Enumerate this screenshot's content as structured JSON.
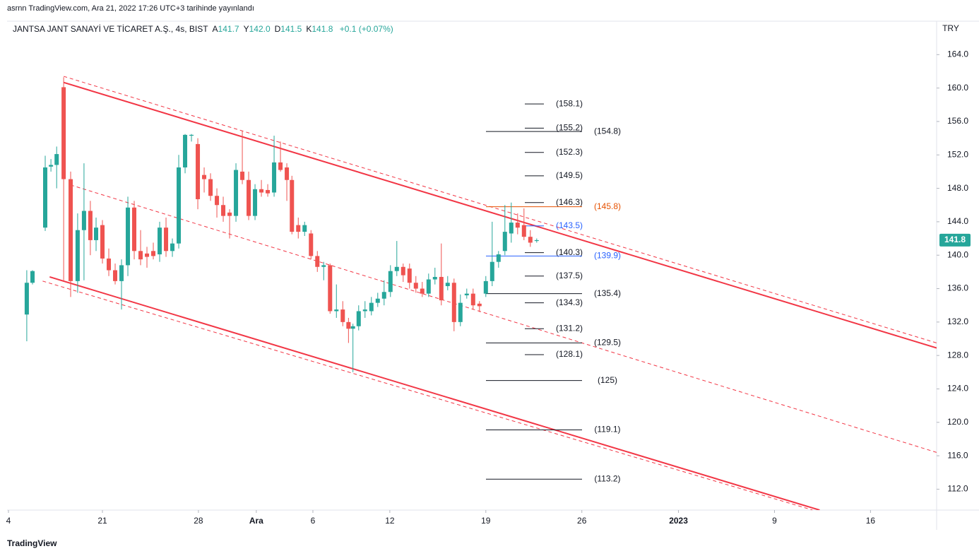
{
  "header": {
    "published": "asrnn TradingView.com, Ara 21, 2022 17:26 UTC+3 tarihinde yayınlandı",
    "symbol": "JANTSA JANT SANAYİ VE TİCARET A.Ş., 4s, BIST",
    "ohlc": [
      {
        "key": "A",
        "value": "141.7"
      },
      {
        "key": "Y",
        "value": "142.0"
      },
      {
        "key": "D",
        "value": "141.5"
      },
      {
        "key": "K",
        "value": "141.8"
      }
    ],
    "change": "+0.1 (+0.07%)"
  },
  "footer": {
    "brand": "TradingView"
  },
  "chart_data": {
    "type": "candlestick",
    "currency": "TRY",
    "up_color": "#26a69a",
    "down_color": "#ef5350",
    "grid": false,
    "ylim": [
      109.5,
      168.0
    ],
    "yticks": [
      {
        "value": 112,
        "label": "112.0"
      },
      {
        "value": 116,
        "label": "116.0"
      },
      {
        "value": 120,
        "label": "120.0"
      },
      {
        "value": 124,
        "label": "124.0"
      },
      {
        "value": 128,
        "label": "128.0"
      },
      {
        "value": 132,
        "label": "132.0"
      },
      {
        "value": 136,
        "label": "136.0"
      },
      {
        "value": 140,
        "label": "140.0"
      },
      {
        "value": 144,
        "label": "144.0"
      },
      {
        "value": 148,
        "label": "148.0"
      },
      {
        "value": 152,
        "label": "152.0"
      },
      {
        "value": 156,
        "label": "156.0"
      },
      {
        "value": 160,
        "label": "160.0"
      },
      {
        "value": 164,
        "label": "164.0"
      }
    ],
    "xlim": [
      0,
      146.2
    ],
    "xticks": [
      {
        "value": 0.22,
        "label": "4"
      },
      {
        "value": 15,
        "label": "21"
      },
      {
        "value": 30.1,
        "label": "28"
      },
      {
        "value": 39.2,
        "label": "Ara"
      },
      {
        "value": 48.1,
        "label": "6"
      },
      {
        "value": 60.2,
        "label": "12"
      },
      {
        "value": 75.3,
        "label": "19"
      },
      {
        "value": 90.4,
        "label": "26"
      },
      {
        "value": 105.6,
        "label": "2023"
      },
      {
        "value": 120.7,
        "label": "9"
      },
      {
        "value": 135.8,
        "label": "16"
      }
    ],
    "last_price": 141.8,
    "candles": [
      {
        "x": 3.1,
        "open": 132.9,
        "high": 138.2,
        "low": 129.7,
        "close": 136.7
      },
      {
        "x": 4,
        "open": 136.7,
        "high": 138.2,
        "low": 136.5,
        "close": 138.1
      },
      {
        "x": 6,
        "open": 143.3,
        "high": 151.9,
        "low": 142.9,
        "close": 150.5
      },
      {
        "x": 6.9,
        "open": 150.6,
        "high": 151.5,
        "low": 150,
        "close": 150.8
      },
      {
        "x": 7.8,
        "open": 150.8,
        "high": 153,
        "low": 148,
        "close": 152.1
      },
      {
        "x": 8.9,
        "open": 160.1,
        "high": 161.3,
        "low": 137,
        "close": 149.1
      },
      {
        "x": 10,
        "open": 149.1,
        "high": 150,
        "low": 135,
        "close": 136.9
      },
      {
        "x": 11.1,
        "open": 136.9,
        "high": 145,
        "low": 135.5,
        "close": 143
      },
      {
        "x": 12.1,
        "open": 143,
        "high": 151,
        "low": 137,
        "close": 145.3
      },
      {
        "x": 13.1,
        "open": 145.3,
        "high": 146.5,
        "low": 140,
        "close": 141.8
      },
      {
        "x": 14,
        "open": 141.8,
        "high": 144.5,
        "low": 140.5,
        "close": 143.3
      },
      {
        "x": 15,
        "open": 143.6,
        "high": 144.2,
        "low": 139,
        "close": 139.6
      },
      {
        "x": 16,
        "open": 139.6,
        "high": 140.8,
        "low": 137.5,
        "close": 138.2
      },
      {
        "x": 17,
        "open": 138.2,
        "high": 139,
        "low": 136.5,
        "close": 136.9
      },
      {
        "x": 18,
        "open": 136.9,
        "high": 139.5,
        "low": 133.5,
        "close": 138.8
      },
      {
        "x": 19,
        "open": 138.8,
        "high": 147,
        "low": 137.5,
        "close": 145.7
      },
      {
        "x": 20,
        "open": 145.7,
        "high": 146.5,
        "low": 139.5,
        "close": 140.5
      },
      {
        "x": 21,
        "open": 140.5,
        "high": 143,
        "low": 138.8,
        "close": 139.5
      },
      {
        "x": 22,
        "open": 140.2,
        "high": 141,
        "low": 138.5,
        "close": 139.8
      },
      {
        "x": 23,
        "open": 140.5,
        "high": 141.5,
        "low": 139.5,
        "close": 139.9
      },
      {
        "x": 24,
        "open": 140.1,
        "high": 144,
        "low": 139.2,
        "close": 143.3
      },
      {
        "x": 25,
        "open": 143.3,
        "high": 144.5,
        "low": 139.8,
        "close": 140.5
      },
      {
        "x": 26,
        "open": 140.5,
        "high": 142,
        "low": 139.8,
        "close": 141.4
      },
      {
        "x": 27,
        "open": 141.4,
        "high": 152,
        "low": 140.8,
        "close": 150.5
      },
      {
        "x": 28,
        "open": 150.5,
        "high": 154.5,
        "low": 149.8,
        "close": 154.4
      },
      {
        "x": 29,
        "open": 154.3,
        "high": 154.5,
        "low": 153.6,
        "close": 154.4
      },
      {
        "x": 30,
        "open": 153.3,
        "high": 154,
        "low": 145.5,
        "close": 146.7
      },
      {
        "x": 31,
        "open": 149.6,
        "high": 150.5,
        "low": 147.5,
        "close": 149.1
      },
      {
        "x": 32,
        "open": 149.1,
        "high": 149.8,
        "low": 146.5,
        "close": 147.1
      },
      {
        "x": 33,
        "open": 147.1,
        "high": 148,
        "low": 144.5,
        "close": 146
      },
      {
        "x": 34,
        "open": 146,
        "high": 147,
        "low": 144,
        "close": 144.7
      },
      {
        "x": 35,
        "open": 145.1,
        "high": 145.5,
        "low": 142,
        "close": 144.7
      },
      {
        "x": 36,
        "open": 144.7,
        "high": 151,
        "low": 144,
        "close": 150.2
      },
      {
        "x": 37,
        "open": 150,
        "high": 154.9,
        "low": 148.5,
        "close": 149
      },
      {
        "x": 38,
        "open": 149,
        "high": 150,
        "low": 144.2,
        "close": 144.7
      },
      {
        "x": 39,
        "open": 144.7,
        "high": 148.5,
        "low": 144.2,
        "close": 147.9
      },
      {
        "x": 40,
        "open": 147.9,
        "high": 149,
        "low": 147,
        "close": 147.5
      },
      {
        "x": 41,
        "open": 147.8,
        "high": 148.5,
        "low": 147,
        "close": 147.4
      },
      {
        "x": 42,
        "open": 147.5,
        "high": 154.3,
        "low": 147,
        "close": 151.1
      },
      {
        "x": 43,
        "open": 151.1,
        "high": 153.6,
        "low": 150,
        "close": 150.2
      },
      {
        "x": 44,
        "open": 150.5,
        "high": 151,
        "low": 146.5,
        "close": 149
      },
      {
        "x": 44.8,
        "open": 149,
        "high": 149.5,
        "low": 142.5,
        "close": 142.8
      },
      {
        "x": 45.8,
        "open": 143.6,
        "high": 144.5,
        "low": 142,
        "close": 142.8
      },
      {
        "x": 46.8,
        "open": 142.8,
        "high": 144,
        "low": 142.3,
        "close": 143.6
      },
      {
        "x": 47.8,
        "open": 142.6,
        "high": 143,
        "low": 139.5,
        "close": 139.9
      },
      {
        "x": 48.8,
        "open": 139.9,
        "high": 140.5,
        "low": 138,
        "close": 138.6
      },
      {
        "x": 49.8,
        "open": 138.6,
        "high": 139.2,
        "low": 137,
        "close": 138.8
      },
      {
        "x": 50.8,
        "open": 138.8,
        "high": 139,
        "low": 133,
        "close": 133.3
      },
      {
        "x": 51.8,
        "open": 133.3,
        "high": 136.5,
        "low": 132.5,
        "close": 133.5
      },
      {
        "x": 52.8,
        "open": 133.5,
        "high": 134.5,
        "low": 131.5,
        "close": 132
      },
      {
        "x": 53.7,
        "open": 132,
        "high": 132.5,
        "low": 129.5,
        "close": 131.2
      },
      {
        "x": 54.4,
        "open": 131.2,
        "high": 131.8,
        "low": 126,
        "close": 131.5
      },
      {
        "x": 55.3,
        "open": 131.5,
        "high": 134,
        "low": 131,
        "close": 133.3
      },
      {
        "x": 56.3,
        "open": 133.3,
        "high": 134.5,
        "low": 132.5,
        "close": 133.5
      },
      {
        "x": 57.3,
        "open": 133.3,
        "high": 135,
        "low": 132.8,
        "close": 134.3
      },
      {
        "x": 58.3,
        "open": 134.3,
        "high": 135.5,
        "low": 133.8,
        "close": 134.8
      },
      {
        "x": 59.3,
        "open": 134.8,
        "high": 137,
        "low": 134,
        "close": 135.6
      },
      {
        "x": 60.3,
        "open": 135.6,
        "high": 138.8,
        "low": 135,
        "close": 138.1
      },
      {
        "x": 61.3,
        "open": 138.1,
        "high": 141.7,
        "low": 137.5,
        "close": 138.6
      },
      {
        "x": 62.3,
        "open": 138.6,
        "high": 139,
        "low": 136.8,
        "close": 137.6
      },
      {
        "x": 63.3,
        "open": 138.4,
        "high": 139,
        "low": 136,
        "close": 136.7
      },
      {
        "x": 64.3,
        "open": 136.7,
        "high": 137.5,
        "low": 135.5,
        "close": 136
      },
      {
        "x": 65.3,
        "open": 136,
        "high": 136.8,
        "low": 135,
        "close": 135.4
      },
      {
        "x": 66.3,
        "open": 135.4,
        "high": 137.8,
        "low": 135,
        "close": 137.1
      },
      {
        "x": 67.3,
        "open": 137.1,
        "high": 138.5,
        "low": 136.5,
        "close": 137.4
      },
      {
        "x": 68.3,
        "open": 137.4,
        "high": 141.4,
        "low": 134,
        "close": 134.6
      },
      {
        "x": 69.3,
        "open": 136.3,
        "high": 137.5,
        "low": 135.8,
        "close": 136.7
      },
      {
        "x": 70.3,
        "open": 136.7,
        "high": 137.2,
        "low": 130.9,
        "close": 132
      },
      {
        "x": 71.3,
        "open": 132,
        "high": 135.3,
        "low": 131.5,
        "close": 134.3
      },
      {
        "x": 72.3,
        "open": 135.2,
        "high": 136,
        "low": 134.8,
        "close": 135.4
      },
      {
        "x": 73.3,
        "open": 135.4,
        "high": 136,
        "low": 133.5,
        "close": 134
      },
      {
        "x": 74.3,
        "open": 134.2,
        "high": 134.5,
        "low": 133.2,
        "close": 133.9
      },
      {
        "x": 75.3,
        "open": 135.4,
        "high": 137.5,
        "low": 135,
        "close": 136.9
      },
      {
        "x": 76.3,
        "open": 136.9,
        "high": 144,
        "low": 136.3,
        "close": 139.2
      },
      {
        "x": 77.3,
        "open": 139.2,
        "high": 140.5,
        "low": 138.5,
        "close": 140.1
      },
      {
        "x": 78.3,
        "open": 140.5,
        "high": 146,
        "low": 140,
        "close": 142.8
      },
      {
        "x": 79.3,
        "open": 142.6,
        "high": 146.3,
        "low": 141.5,
        "close": 143.9
      },
      {
        "x": 80.3,
        "open": 143.9,
        "high": 145,
        "low": 142.5,
        "close": 143.3
      },
      {
        "x": 81.3,
        "open": 143.6,
        "high": 145.6,
        "low": 141.8,
        "close": 142.2
      },
      {
        "x": 82.3,
        "open": 142.2,
        "high": 143,
        "low": 141,
        "close": 141.5
      },
      {
        "x": 83.3,
        "open": 141.7,
        "high": 142,
        "low": 141.5,
        "close": 141.8
      }
    ],
    "trendlines": [
      {
        "x": [
          8.9,
          146.2
        ],
        "y": [
          160.67,
          128.9
        ],
        "color": "#f23645",
        "dashed": false
      },
      {
        "x": [
          8.9,
          146.2
        ],
        "y": [
          161.4,
          129.5
        ],
        "color": "#f23645",
        "dashed": true
      },
      {
        "x": [
          10,
          146.2
        ],
        "y": [
          148.4,
          116.4
        ],
        "color": "#f23645",
        "dashed": true
      },
      {
        "x": [
          6.7,
          127.8
        ],
        "y": [
          137.4,
          109.5
        ],
        "color": "#f23645",
        "dashed": false
      },
      {
        "x": [
          5.6,
          126.7
        ],
        "y": [
          136.9,
          109.5
        ],
        "color": "#f23645",
        "dashed": true
      }
    ],
    "levels_short": {
      "values": [
        158.1,
        155.2,
        152.3,
        149.5,
        146.3,
        143.5,
        140.3,
        137.5,
        134.3,
        131.2,
        128.1
      ],
      "value_labels": [
        "(158.1)",
        "(155.2)",
        "(152.3)",
        "(149.5)",
        "(146.3)",
        "(143.5)",
        "(140.3)",
        "(137.5)",
        "(134.3)",
        "(131.2)",
        "(128.1)"
      ],
      "colors": [
        "#131722",
        "#131722",
        "#131722",
        "#131722",
        "#131722",
        "#2962ff",
        "#131722",
        "#131722",
        "#131722",
        "#131722",
        "#131722"
      ]
    },
    "levels_long": {
      "values": [
        154.8,
        145.8,
        139.9,
        135.4,
        129.5,
        125,
        119.1,
        113.2
      ],
      "value_labels": [
        "(154.8)",
        "(145.8)",
        "(139.9)",
        "(135.4)",
        "(129.5)",
        "(125)",
        "(119.1)",
        "(113.2)"
      ],
      "colors": [
        "#131722",
        "#e65100",
        "#2962ff",
        "#131722",
        "#131722",
        "#131722",
        "#131722",
        "#131722"
      ]
    }
  }
}
